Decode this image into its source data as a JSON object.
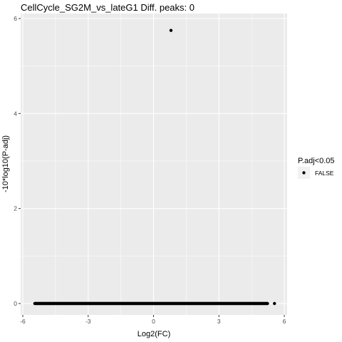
{
  "chart_data": {
    "type": "scatter",
    "title": "CellCycle_SG2M_vs_lateG1 Diff. peaks: 0",
    "xlabel": "Log2(FC)",
    "ylabel": "-10*log10(P-adj)",
    "xlim": [
      -6,
      6
    ],
    "ylim": [
      0,
      6
    ],
    "x_ticks": [
      -6,
      -3,
      0,
      3,
      6
    ],
    "x_tick_labels": [
      "-6",
      "-3",
      "0",
      "3",
      "6"
    ],
    "y_ticks": [
      0,
      2,
      4,
      6
    ],
    "y_tick_labels": [
      "0",
      "2",
      "4",
      "6"
    ],
    "grid": true,
    "panel_background": "#ebebeb",
    "grid_color": "#ffffff",
    "point_color": "#000000",
    "legend": {
      "title": "P.adj<0.05",
      "entries": [
        {
          "label": "FALSE",
          "color": "#000000"
        }
      ],
      "placement": "right"
    },
    "series": [
      {
        "name": "FALSE",
        "points": [
          {
            "x": 0.8,
            "y": 5.75
          },
          {
            "x": 5.55,
            "y": 0
          }
        ],
        "dense_band": {
          "x_range": [
            -5.45,
            5.25
          ],
          "y": 0
        }
      }
    ]
  }
}
